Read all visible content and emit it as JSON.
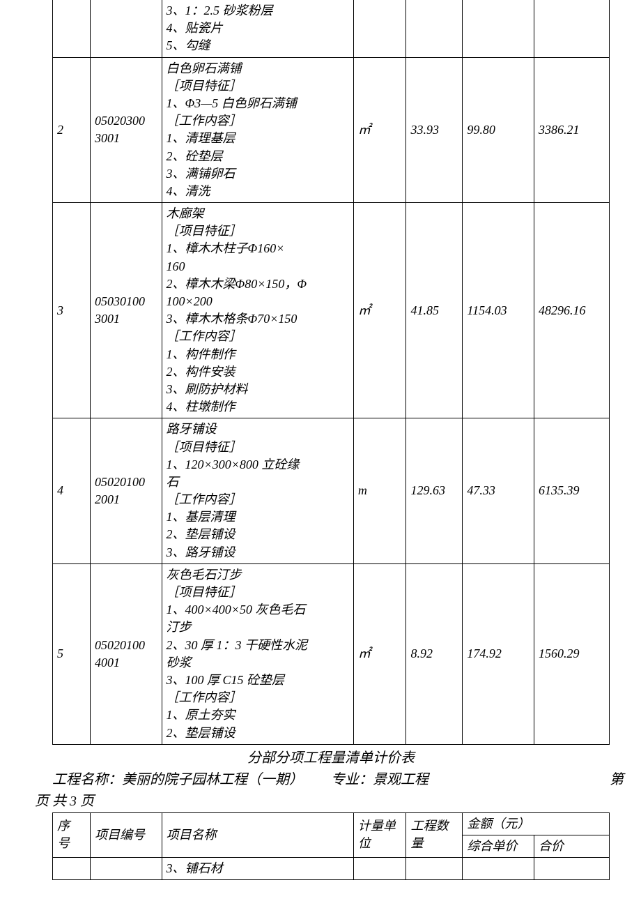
{
  "tableTop": {
    "rows": [
      {
        "seq": "",
        "code": "",
        "name": "3、1：2.5 砂浆粉层\n4、贴瓷片\n5、勾缝",
        "unit": "",
        "qty": "",
        "unitPrice": "",
        "total": ""
      },
      {
        "seq": "2",
        "code": "05020300 3001",
        "name": "白色卵石满铺\n  ［项目特征］\n1、Φ3—5 白色卵石满铺\n      ［工作内容］\n1、清理基层\n2、砼垫层\n3、满铺卵石\n4、清洗",
        "unit": "㎡",
        "qty": "33.93",
        "unitPrice": "99.80",
        "total": "3386.21"
      },
      {
        "seq": "3",
        "code": "05030100 3001",
        "name": "木廊架\n［项目特征］\n1、樟木木柱子Φ160×\n     160\n2、樟木木梁Φ80×150，Φ\n     100×200\n3、樟木木格条Φ70×150\n［工作内容］\n1、构件制作\n2、构件安装\n3、刷防护材料\n4、柱墩制作",
        "unit": "㎡",
        "qty": "41.85",
        "unitPrice": "1154.03",
        "total": "48296.16"
      },
      {
        "seq": "4",
        "code": "05020100 2001",
        "name": "路牙铺设\n［项目特征］\n1、120×300×800 立砼缘\n石\n［工作内容］\n1、基层清理\n2、垫层铺设\n3、路牙铺设",
        "unit": "m",
        "qty": "129.63",
        "unitPrice": "47.33",
        "total": "6135.39"
      },
      {
        "seq": "5",
        "code": "05020100 4001",
        "name": "灰色毛石汀步\n［项目特征］\n1、400×400×50 灰色毛石\n汀步\n2、30 厚 1：3 干硬性水泥\n砂浆\n3、100 厚 C15 砼垫层\n［工作内容］\n1、原土夯实\n2、垫层铺设",
        "unit": "㎡",
        "qty": "8.92",
        "unitPrice": "174.92",
        "total": "1560.29"
      }
    ]
  },
  "section": {
    "title": "分部分项工程量清单计价表",
    "projectLabel": "工程名称：美丽的院子园林工程（一期）",
    "specialtyLabel": "专业：景观工程",
    "pageRight": "第",
    "pageLine": "页     共 3 页"
  },
  "tableBottom": {
    "headers": {
      "seq": "序号",
      "code": "项目编号",
      "name": "项目名称",
      "unit": "计量单位",
      "qty": "工程数量",
      "amount": "金额（元）",
      "unitPrice": "综合单价",
      "total": "合价"
    },
    "row": {
      "seq": "",
      "code": "",
      "name": "3、铺石材",
      "unit": "",
      "qty": "",
      "unitPrice": "",
      "total": ""
    }
  }
}
